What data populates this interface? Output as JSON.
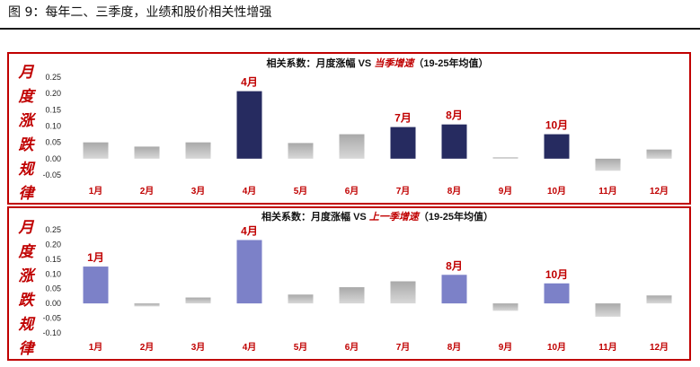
{
  "figure_title": "图 9：每年二、三季度，业绩和股价相关性增强",
  "side_label": [
    "月",
    "度",
    "涨",
    "跌",
    "规",
    "律"
  ],
  "colors": {
    "accent_red": "#c00000",
    "navy": "#262b60",
    "lilac": "#7c81c8",
    "gray": "#9a9a9a"
  },
  "chart_data": [
    {
      "type": "bar",
      "title_prefix": "相关系数：月度涨幅 VS ",
      "title_highlight": "当季增速",
      "title_suffix": "（19-25年均值）",
      "categories": [
        "1月",
        "2月",
        "3月",
        "4月",
        "5月",
        "6月",
        "7月",
        "8月",
        "9月",
        "10月",
        "11月",
        "12月"
      ],
      "values": [
        0.05,
        0.037,
        0.05,
        0.207,
        0.048,
        0.075,
        0.097,
        0.105,
        0.004,
        0.075,
        -0.037,
        0.028
      ],
      "highlighted_months": [
        "4月",
        "7月",
        "8月",
        "10月"
      ],
      "highlight_color": "#262b60",
      "ylim": [
        -0.05,
        0.25
      ],
      "yticks": [
        "0.25",
        "0.20",
        "0.15",
        "0.10",
        "0.05",
        "0.00",
        "-0.05"
      ],
      "ytick_values": [
        0.25,
        0.2,
        0.15,
        0.1,
        0.05,
        0.0,
        -0.05
      ],
      "grid": false
    },
    {
      "type": "bar",
      "title_prefix": "相关系数：月度涨幅 VS ",
      "title_highlight": "上一季增速",
      "title_suffix": "（19-25年均值）",
      "categories": [
        "1月",
        "2月",
        "3月",
        "4月",
        "5月",
        "6月",
        "7月",
        "8月",
        "9月",
        "10月",
        "11月",
        "12月"
      ],
      "values": [
        0.125,
        -0.01,
        0.02,
        0.215,
        0.03,
        0.055,
        0.075,
        0.097,
        -0.025,
        0.068,
        -0.045,
        0.027
      ],
      "highlighted_months": [
        "1月",
        "4月",
        "8月",
        "10月"
      ],
      "highlight_color": "#7c81c8",
      "ylim": [
        -0.1,
        0.25
      ],
      "yticks": [
        "0.25",
        "0.20",
        "0.15",
        "0.10",
        "0.05",
        "0.00",
        "-0.05",
        "-0.10"
      ],
      "ytick_values": [
        0.25,
        0.2,
        0.15,
        0.1,
        0.05,
        0.0,
        -0.05,
        -0.1
      ],
      "grid": false
    }
  ]
}
